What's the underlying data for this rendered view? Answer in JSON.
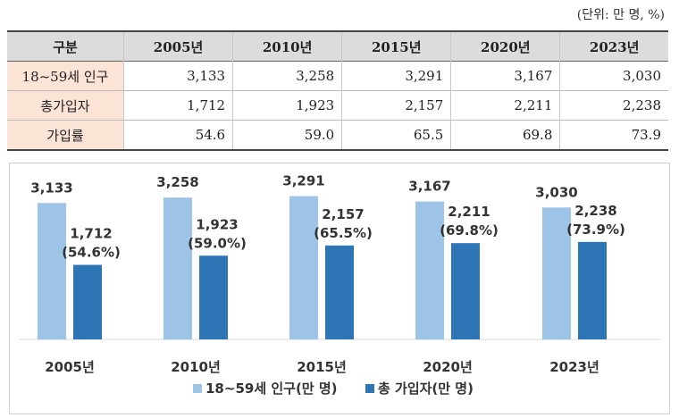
{
  "unit_note": "(단위: 만 명, %)",
  "table": {
    "header": [
      "구분",
      "2005년",
      "2010년",
      "2015년",
      "2020년",
      "2023년"
    ],
    "rows": [
      {
        "label": "18~59세 인구",
        "values": [
          "3,133",
          "3,258",
          "3,291",
          "3,167",
          "3,030"
        ]
      },
      {
        "label": "총가입자",
        "values": [
          "1,712",
          "1,923",
          "2,157",
          "2,211",
          "2,238"
        ]
      },
      {
        "label": "가입률",
        "values": [
          "54.6",
          "59.0",
          "65.5",
          "69.8",
          "73.9"
        ]
      }
    ]
  },
  "colors": {
    "population": "#9dc3e6",
    "subscribers": "#2e75b6"
  },
  "chart_data": {
    "type": "bar",
    "categories": [
      "2005년",
      "2010년",
      "2015년",
      "2020년",
      "2023년"
    ],
    "series": [
      {
        "name": "18~59세 인구(만 명)",
        "values": [
          3133,
          3258,
          3291,
          3167,
          3030
        ],
        "labels": [
          "3,133",
          "3,258",
          "3,291",
          "3,167",
          "3,030"
        ]
      },
      {
        "name": "총 가입자(만 명)",
        "values": [
          1712,
          1923,
          2157,
          2211,
          2238
        ],
        "labels": [
          "1,712",
          "1,923",
          "2,157",
          "2,211",
          "2,238"
        ]
      }
    ],
    "rate_labels": [
      "(54.6%)",
      "(59.0%)",
      "(65.5%)",
      "(69.8%)",
      "(73.9%)"
    ],
    "ylim": [
      0,
      4000
    ],
    "grid": false,
    "legend": "bottom"
  }
}
